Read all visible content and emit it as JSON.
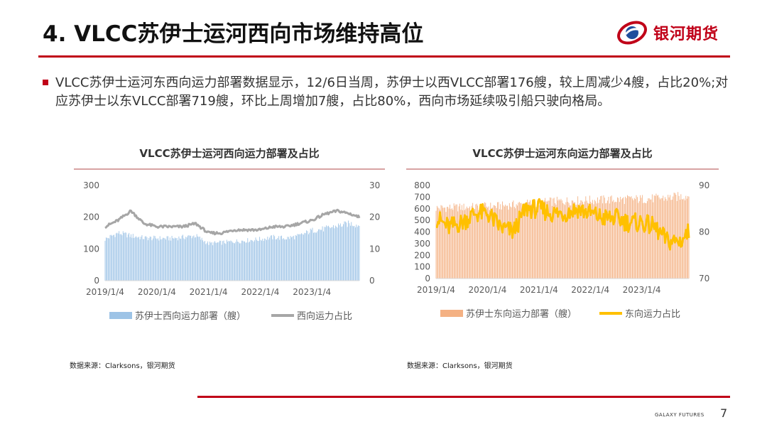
{
  "header": {
    "title": "4. VLCC苏伊士运河西向市场维持高位",
    "logo_text": "银河期货"
  },
  "body": {
    "paragraph": "VLCC苏伊士运河东西向运力部署数据显示，12/6日当周，苏伊士以西VLCC部署176艘，较上周减少4艘，占比20%;对应苏伊士以东VLCC部署719艘，环比上周增加7艘，占比80%，西向市场延续吸引船只驶向格局。"
  },
  "footer": {
    "brand": "GALAXY FUTURES",
    "page_number": "7"
  },
  "colors": {
    "accent": "#c00018",
    "west_bar": "#9dc3e6",
    "west_line": "#a6a6a6",
    "east_bar": "#f4b183",
    "east_line": "#ffc000"
  },
  "chart_data": [
    {
      "type": "bar",
      "title": "VLCC苏伊士运河西向运力部署及占比",
      "source": "数据来源：Clarksons，银河期货",
      "x_ticks": [
        "2019/1/4",
        "2020/1/4",
        "2021/1/4",
        "2022/1/4",
        "2023/1/4"
      ],
      "ylim": [
        0,
        300
      ],
      "y_ticks": [
        0,
        100,
        200,
        300
      ],
      "y2lim": [
        0,
        30
      ],
      "y2_ticks": [
        0,
        10,
        20,
        30
      ],
      "grid": false,
      "legend_position": "bottom",
      "series": [
        {
          "name": "苏伊士西向运力部署（艘）",
          "kind": "bar",
          "axis": "left",
          "x": [
            "2019-01",
            "2019-04",
            "2019-07",
            "2019-10",
            "2020-01",
            "2020-04",
            "2020-07",
            "2020-10",
            "2021-01",
            "2021-04",
            "2021-07",
            "2021-10",
            "2022-01",
            "2022-04",
            "2022-07",
            "2022-10",
            "2023-01",
            "2023-04",
            "2023-07",
            "2023-10",
            "2023-12"
          ],
          "values": [
            132,
            152,
            143,
            136,
            135,
            134,
            138,
            143,
            118,
            121,
            125,
            128,
            132,
            138,
            135,
            142,
            160,
            165,
            175,
            182,
            176
          ]
        },
        {
          "name": "西向运力占比",
          "kind": "line",
          "axis": "right",
          "x": [
            "2019-01",
            "2019-04",
            "2019-07",
            "2019-10",
            "2020-01",
            "2020-04",
            "2020-07",
            "2020-10",
            "2021-01",
            "2021-04",
            "2021-07",
            "2021-10",
            "2022-01",
            "2022-04",
            "2022-07",
            "2022-10",
            "2023-01",
            "2023-04",
            "2023-07",
            "2023-10",
            "2023-12"
          ],
          "values": [
            17,
            19,
            22,
            18,
            17,
            17,
            17,
            18,
            15,
            15,
            16,
            16,
            16,
            17,
            17,
            18,
            19,
            21,
            22,
            21,
            20
          ]
        }
      ]
    },
    {
      "type": "bar",
      "title": "VLCC苏伊士运河东向运力部署及占比",
      "source": "数据来源：Clarksons，银河期货",
      "x_ticks": [
        "2019/1/4",
        "2020/1/4",
        "2021/1/4",
        "2022/1/4",
        "2023/1/4"
      ],
      "ylim": [
        0,
        800
      ],
      "y_ticks": [
        0,
        100,
        200,
        300,
        400,
        500,
        600,
        700,
        800
      ],
      "y2lim": [
        70,
        90
      ],
      "y2_ticks": [
        70,
        80,
        90
      ],
      "grid": false,
      "legend_position": "bottom",
      "series": [
        {
          "name": "苏伊士东向运力部署（艘）",
          "kind": "bar",
          "axis": "left",
          "x": [
            "2019-01",
            "2019-04",
            "2019-07",
            "2019-10",
            "2020-01",
            "2020-04",
            "2020-07",
            "2020-10",
            "2021-01",
            "2021-04",
            "2021-07",
            "2021-10",
            "2022-01",
            "2022-04",
            "2022-07",
            "2022-10",
            "2023-01",
            "2023-04",
            "2023-07",
            "2023-10",
            "2023-12"
          ],
          "values": [
            612,
            615,
            618,
            622,
            626,
            630,
            640,
            650,
            660,
            668,
            672,
            676,
            680,
            683,
            685,
            688,
            690,
            695,
            700,
            712,
            719
          ]
        },
        {
          "name": "东向运力占比",
          "kind": "line",
          "axis": "right",
          "x": [
            "2019-01",
            "2019-04",
            "2019-07",
            "2019-10",
            "2020-01",
            "2020-04",
            "2020-07",
            "2020-10",
            "2021-01",
            "2021-04",
            "2021-07",
            "2021-10",
            "2022-01",
            "2022-04",
            "2022-07",
            "2022-10",
            "2023-01",
            "2023-04",
            "2023-07",
            "2023-10",
            "2023-12"
          ],
          "values": [
            83,
            81,
            82,
            84,
            84,
            81,
            80,
            85,
            85,
            84,
            84,
            85,
            84,
            83,
            83,
            82,
            82,
            81,
            78,
            78,
            80
          ]
        }
      ]
    }
  ]
}
